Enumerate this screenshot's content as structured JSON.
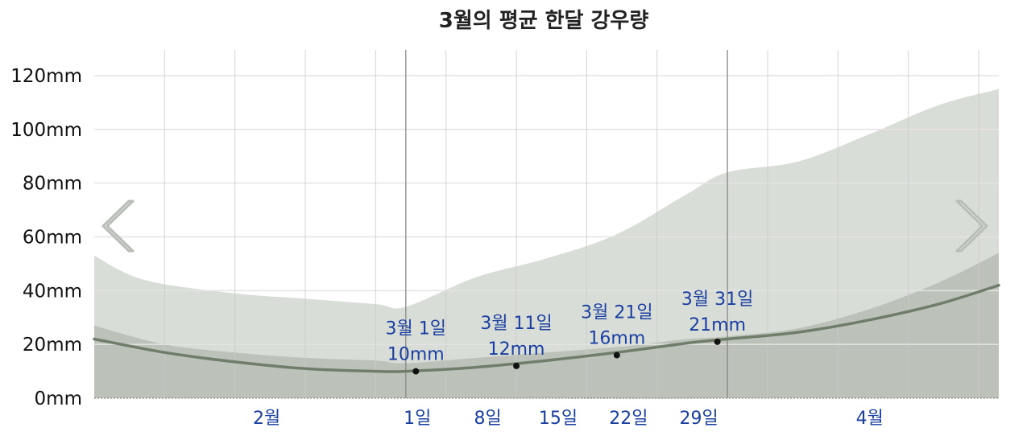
{
  "chart_data": {
    "type": "area",
    "title": "3월의 평균 한달 강우량",
    "xlabel": "",
    "ylabel": "",
    "ylim": [
      0,
      130
    ],
    "xlim": [
      -31,
      59
    ],
    "y_ticks": [
      {
        "value": 0,
        "label": "0mm"
      },
      {
        "value": 20,
        "label": "20mm"
      },
      {
        "value": 40,
        "label": "40mm"
      },
      {
        "value": 60,
        "label": "60mm"
      },
      {
        "value": 80,
        "label": "80mm"
      },
      {
        "value": 100,
        "label": "100mm"
      },
      {
        "value": 120,
        "label": "120mm"
      }
    ],
    "x_ticks": [
      {
        "day": -14,
        "label": "2월"
      },
      {
        "day": 1,
        "label": "1일"
      },
      {
        "day": 8,
        "label": "8일"
      },
      {
        "day": 15,
        "label": "15일"
      },
      {
        "day": 22,
        "label": "22일"
      },
      {
        "day": 29,
        "label": "29일"
      },
      {
        "day": 46,
        "label": "4월"
      }
    ],
    "month_boundaries": [
      0,
      32
    ],
    "gridline_days": [
      -24,
      -17,
      -10,
      -3,
      4,
      11,
      18,
      25,
      36,
      43,
      50,
      57
    ],
    "series": [
      {
        "role": "outer_band_upper",
        "x": [
          -31,
          -26,
          -17,
          -10,
          -3,
          0,
          7,
          14,
          21,
          28,
          32,
          39,
          46,
          53,
          59
        ],
        "values": [
          53,
          44,
          39,
          37,
          35,
          34,
          45,
          52,
          61,
          76,
          84,
          88,
          98,
          109,
          115
        ]
      },
      {
        "role": "outer_band_lower",
        "x": [
          -31,
          0,
          32,
          46,
          59
        ],
        "values": [
          0,
          0,
          0,
          3,
          8
        ]
      },
      {
        "role": "inner_band_upper",
        "x": [
          -31,
          -24,
          -17,
          -10,
          -3,
          0,
          7,
          14,
          21,
          28,
          32,
          39,
          46,
          53,
          59
        ],
        "values": [
          27,
          20,
          17,
          15,
          14,
          13,
          15,
          17,
          19,
          22,
          23,
          26,
          33,
          43,
          54
        ]
      },
      {
        "role": "inner_band_lower",
        "x": [
          -31,
          0,
          59
        ],
        "values": [
          0,
          0,
          0
        ]
      },
      {
        "role": "mean",
        "x": [
          -31,
          -24,
          -17,
          -10,
          -3,
          0,
          7,
          14,
          21,
          28,
          32,
          39,
          46,
          53,
          59
        ],
        "values": [
          22,
          17,
          13.5,
          11,
          10,
          10,
          11.5,
          14,
          17,
          20.5,
          22,
          24.5,
          29,
          35,
          42
        ]
      }
    ],
    "annotations": [
      {
        "day": 1,
        "value": 10,
        "line1": "3월 1일",
        "line2": "10mm"
      },
      {
        "day": 11,
        "value": 12,
        "line1": "3월 11일",
        "line2": "12mm"
      },
      {
        "day": 21,
        "value": 16,
        "line1": "3월 21일",
        "line2": "16mm"
      },
      {
        "day": 31,
        "value": 21,
        "line1": "3월 31일",
        "line2": "21mm"
      }
    ],
    "colors": {
      "outer_band": "#d9ddd7",
      "inner_band": "#bcc2ba",
      "mean_line": "#6f7d69",
      "grid": "#c9c9c9",
      "month_line": "#888888",
      "label": "#1a3fa0"
    }
  },
  "nav": {
    "prev_icon": "chevron-left-icon",
    "next_icon": "chevron-right-icon"
  }
}
